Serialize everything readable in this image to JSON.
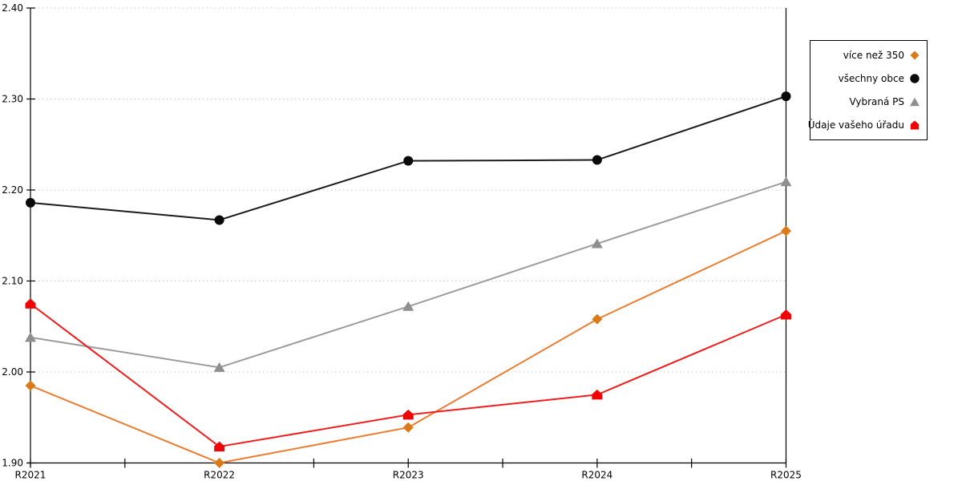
{
  "chart_data": {
    "type": "line",
    "title": "",
    "xlabel": "",
    "ylabel": "",
    "categories": [
      "R2021",
      "R2022",
      "R2023",
      "R2024",
      "R2025"
    ],
    "series": [
      {
        "id": "vice-nez-350",
        "name": "více než 350",
        "marker": "diamond",
        "line_color": "#ED7D31",
        "marker_color": "#DD7A18",
        "values": [
          1.985,
          1.9,
          1.939,
          2.058,
          2.155
        ]
      },
      {
        "id": "vsechny-obce",
        "name": "všechny obce",
        "marker": "circle",
        "line_color": "#1B1B1B",
        "marker_color": "#0A0A0A",
        "values": [
          2.186,
          2.167,
          2.232,
          2.233,
          2.303
        ]
      },
      {
        "id": "vybrana-ps",
        "name": "Vybraná PS",
        "marker": "triangle",
        "line_color": "#9C9C9C",
        "marker_color": "#8F8F8F",
        "values": [
          2.038,
          2.005,
          2.072,
          2.141,
          2.209
        ]
      },
      {
        "id": "udaje-vaseho-uradu",
        "name": "Údaje vašeho úřadu",
        "marker": "pentagon",
        "line_color": "#F21E1E",
        "marker_color": "#EE0606",
        "values": [
          2.075,
          1.918,
          1.953,
          1.975,
          2.063
        ]
      }
    ],
    "ylim": [
      1.9,
      2.4
    ],
    "ytick_step": 0.1,
    "ytick_labels": [
      "1.90",
      "2.00",
      "2.10",
      "2.20",
      "2.30",
      "2.40"
    ],
    "grid": "horizontal-dotted",
    "legend_position": "outside-top-right",
    "axis_color": "#000000",
    "grid_color": "#C9C9C9",
    "background": "#FFFFFF"
  }
}
